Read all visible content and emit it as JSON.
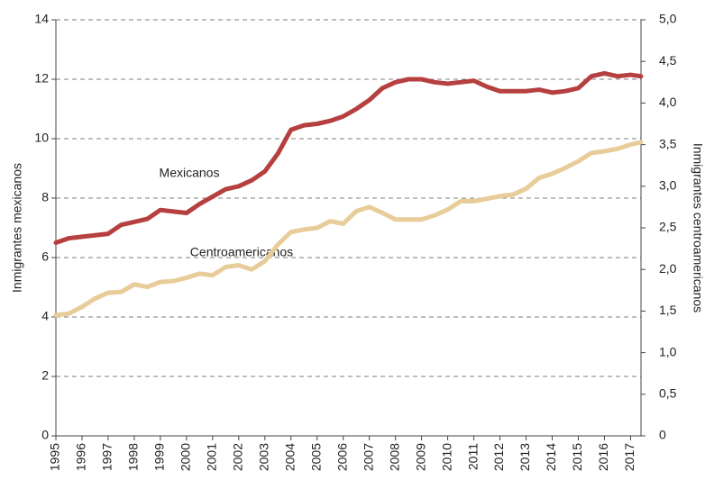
{
  "chart_data": {
    "type": "line",
    "y_label": "Inmigrantes mexicanos",
    "y2_label": "Inmigrantes centroamericanos",
    "annotations": [
      "Mexicanos",
      "Centroamericanos"
    ],
    "x": [
      1995,
      1995.5,
      1996,
      1996.5,
      1997,
      1997.5,
      1998,
      1998.5,
      1999,
      1999.5,
      2000,
      2000.5,
      2001,
      2001.5,
      2002,
      2002.5,
      2003,
      2003.5,
      2004,
      2004.5,
      2005,
      2005.5,
      2006,
      2006.5,
      2007,
      2007.5,
      2008,
      2008.5,
      2009,
      2009.5,
      2010,
      2010.5,
      2011,
      2011.5,
      2012,
      2012.5,
      2013,
      2013.5,
      2014,
      2014.5,
      2015,
      2015.5,
      2016,
      2016.5,
      2017,
      2017.4
    ],
    "series": [
      {
        "name": "Mexicanos",
        "color": "#b5403f",
        "axis": "y",
        "values": [
          6.5,
          6.65,
          6.7,
          6.75,
          6.8,
          7.1,
          7.2,
          7.3,
          7.6,
          7.55,
          7.5,
          7.8,
          8.05,
          8.3,
          8.4,
          8.6,
          8.9,
          9.5,
          10.3,
          10.45,
          10.5,
          10.6,
          10.75,
          11.0,
          11.3,
          11.7,
          11.9,
          12.0,
          12.0,
          11.9,
          11.85,
          11.9,
          11.95,
          11.75,
          11.6,
          11.6,
          11.6,
          11.65,
          11.55,
          11.6,
          11.7,
          12.1,
          12.2,
          12.1,
          12.15,
          12.1
        ]
      },
      {
        "name": "Centroamericanos",
        "color": "#e8cc99",
        "axis": "y2",
        "values": [
          1.45,
          1.47,
          1.55,
          1.65,
          1.72,
          1.73,
          1.82,
          1.79,
          1.85,
          1.86,
          1.9,
          1.95,
          1.93,
          2.03,
          2.05,
          2.0,
          2.1,
          2.3,
          2.45,
          2.48,
          2.5,
          2.58,
          2.55,
          2.7,
          2.75,
          2.68,
          2.6,
          2.6,
          2.6,
          2.65,
          2.72,
          2.82,
          2.82,
          2.85,
          2.88,
          2.9,
          2.97,
          3.1,
          3.15,
          3.22,
          3.3,
          3.4,
          3.42,
          3.45,
          3.5,
          3.53
        ]
      }
    ],
    "xlim": [
      1995,
      2017.4
    ],
    "xticks": [
      1995,
      1996,
      1997,
      1998,
      1999,
      2000,
      2001,
      2002,
      2003,
      2004,
      2005,
      2006,
      2007,
      2008,
      2009,
      2010,
      2011,
      2012,
      2013,
      2014,
      2015,
      2016,
      2017
    ],
    "ylim": [
      0,
      14
    ],
    "yticks": [
      0,
      2,
      4,
      6,
      8,
      10,
      12,
      14
    ],
    "y2lim": [
      0,
      5
    ],
    "y2ticks": [
      0,
      {
        "value": 0.5,
        "label": "0,5"
      },
      {
        "value": 1,
        "label": "1,0"
      },
      {
        "value": 1.5,
        "label": "1,5"
      },
      {
        "value": 2,
        "label": "2,0"
      },
      {
        "value": 2.5,
        "label": "2,5"
      },
      {
        "value": 3,
        "label": "3,0"
      },
      {
        "value": 3.5,
        "label": "3,5"
      },
      {
        "value": 4,
        "label": "4,0"
      },
      {
        "value": 4.5,
        "label": "4,5"
      },
      {
        "value": 5,
        "label": "5,0"
      }
    ],
    "grid": true
  }
}
